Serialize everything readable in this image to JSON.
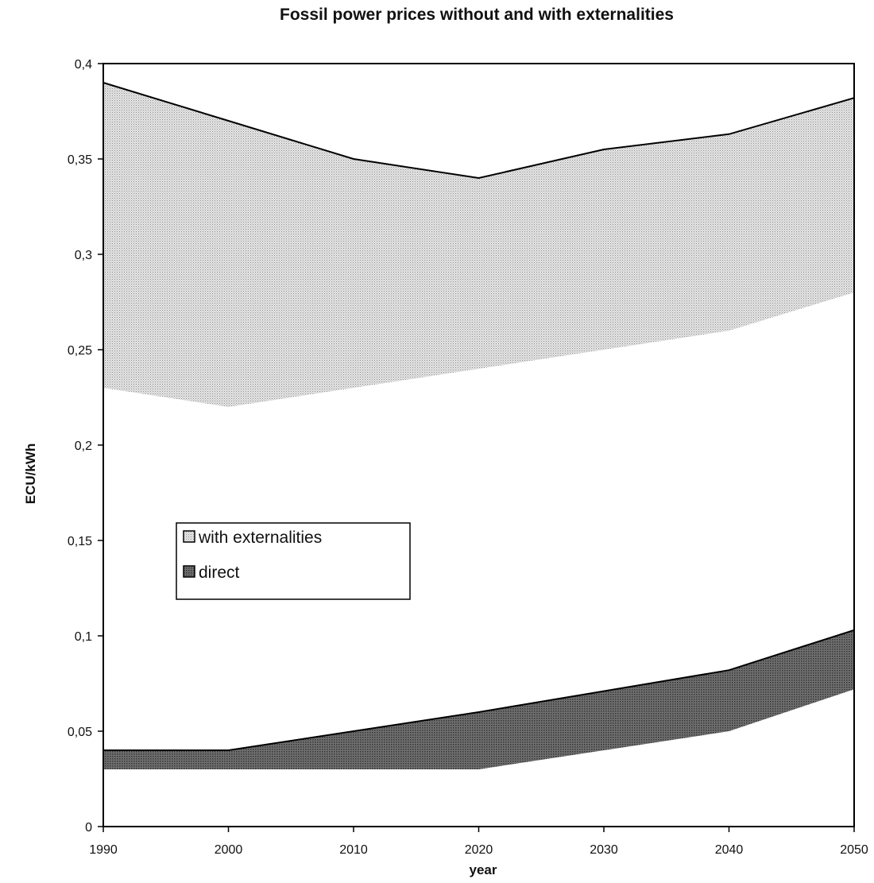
{
  "chart_data": {
    "type": "area",
    "title": "Fossil power prices without and with externalities",
    "xlabel": "year",
    "ylabel": "ECU/kWh",
    "x": [
      1990,
      2000,
      2010,
      2020,
      2030,
      2040,
      2050
    ],
    "xlim": [
      1990,
      2050
    ],
    "ylim": [
      0,
      0.4
    ],
    "x_ticks": [
      "1990",
      "2000",
      "2010",
      "2020",
      "2030",
      "2040",
      "2050"
    ],
    "y_ticks": [
      "0",
      "0,05",
      "0,1",
      "0,15",
      "0,2",
      "0,25",
      "0,3",
      "0,35",
      "0,4"
    ],
    "y_tick_values": [
      0,
      0.05,
      0.1,
      0.15,
      0.2,
      0.25,
      0.3,
      0.35,
      0.4
    ],
    "grid": false,
    "legend_position": "center-left",
    "series": [
      {
        "name": "with externalities",
        "lower": [
          0.23,
          0.22,
          0.23,
          0.24,
          0.25,
          0.26,
          0.28
        ],
        "upper": [
          0.39,
          0.37,
          0.35,
          0.34,
          0.355,
          0.363,
          0.382
        ],
        "color": "#c8c8c8"
      },
      {
        "name": "direct",
        "lower": [
          0.03,
          0.03,
          0.03,
          0.03,
          0.04,
          0.05,
          0.072
        ],
        "upper": [
          0.04,
          0.04,
          0.05,
          0.06,
          0.071,
          0.082,
          0.103
        ],
        "color": "#8a8a8a"
      }
    ]
  }
}
